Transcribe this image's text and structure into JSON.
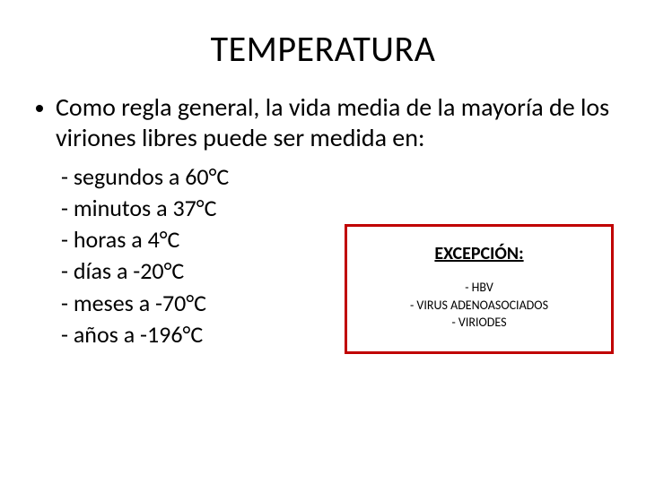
{
  "title": "TEMPERATURA",
  "intro": "Como regla general, la vida media de la mayoría de los viriones libres puede ser medida en:",
  "temps": [
    "- segundos a 60°C",
    "- minutos a 37°C",
    "- horas a 4°C",
    "- días a -20°C",
    "- meses a -70°C",
    "- años a -196°C"
  ],
  "exception": {
    "title": "EXCEPCIÓN:",
    "items": [
      "-   HBV",
      "-   VIRUS ADENOASOCIADOS",
      "-   VIRIODES"
    ],
    "border_color": "#c00000"
  },
  "colors": {
    "text": "#000000",
    "background": "#ffffff"
  }
}
